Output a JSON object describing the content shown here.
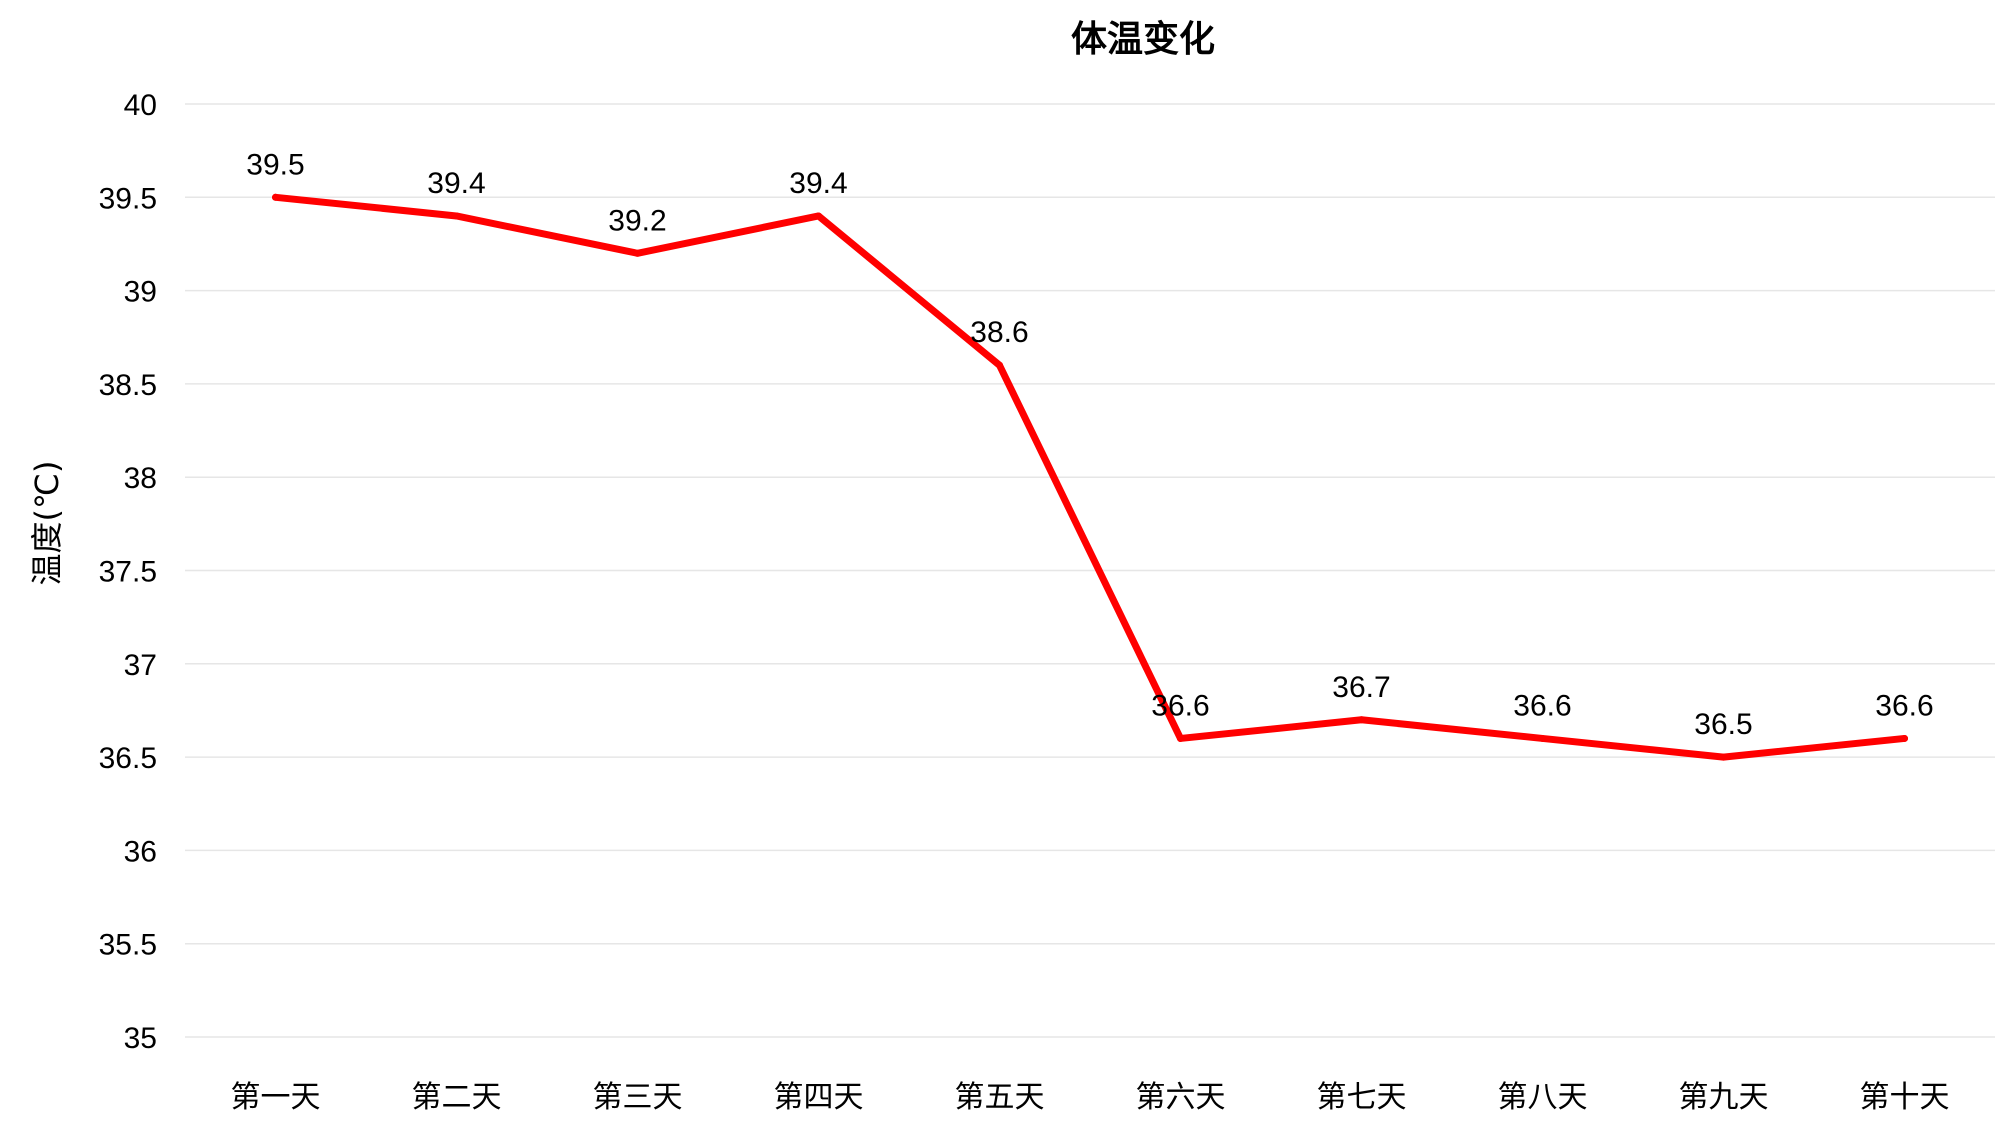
{
  "chart_data": {
    "type": "line",
    "title": "体温变化",
    "xlabel": "",
    "ylabel": "温度(℃)",
    "categories": [
      "第一天",
      "第二天",
      "第三天",
      "第四天",
      "第五天",
      "第六天",
      "第七天",
      "第八天",
      "第九天",
      "第十天"
    ],
    "series": [
      {
        "values": [
          39.5,
          39.4,
          39.2,
          39.4,
          38.6,
          36.6,
          36.7,
          36.6,
          36.5,
          36.6
        ]
      }
    ],
    "data_labels": [
      "39.5",
      "39.4",
      "39.2",
      "39.4",
      "38.6",
      "36.6",
      "36.7",
      "36.6",
      "36.5",
      "36.6"
    ],
    "ylim": [
      35,
      40
    ],
    "yticks": [
      "35",
      "35.5",
      "36",
      "36.5",
      "37",
      "37.5",
      "38",
      "38.5",
      "39",
      "39.5",
      "40"
    ],
    "grid": true,
    "legend": "none",
    "colors": {
      "line": "#ff0000",
      "grid": "#e6e6e6",
      "text": "#000000"
    }
  }
}
